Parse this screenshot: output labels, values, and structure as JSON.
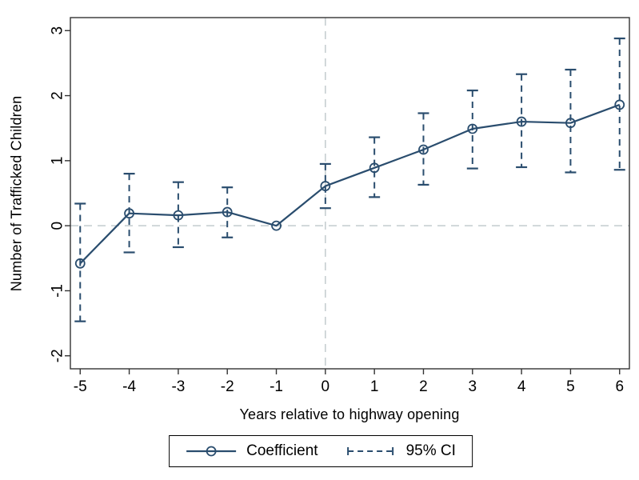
{
  "chart_data": {
    "type": "line",
    "title": "",
    "xlabel": "Years relative to highway opening",
    "ylabel": "Number of Trafficked Children",
    "x": [
      -5,
      -4,
      -3,
      -2,
      -1,
      0,
      1,
      2,
      3,
      4,
      5,
      6
    ],
    "series": [
      {
        "name": "Coefficient",
        "marker": "open-circle",
        "values": [
          -0.58,
          0.19,
          0.16,
          0.21,
          0.0,
          0.61,
          0.89,
          1.17,
          1.49,
          1.6,
          1.58,
          1.86
        ]
      }
    ],
    "ci": {
      "name": "95% CI",
      "style": "dashed-whisker-with-caps",
      "low": [
        -1.47,
        -0.41,
        -0.33,
        -0.18,
        null,
        0.27,
        0.44,
        0.63,
        0.88,
        0.9,
        0.82,
        0.86
      ],
      "high": [
        0.34,
        0.8,
        0.67,
        0.59,
        null,
        0.95,
        1.36,
        1.73,
        2.08,
        2.33,
        2.4,
        2.88
      ]
    },
    "xticks": [
      -5,
      -4,
      -3,
      -2,
      -1,
      0,
      1,
      2,
      3,
      4,
      5,
      6
    ],
    "yticks": [
      3,
      2,
      1,
      0,
      -1,
      -2
    ],
    "xlim": [
      -5.2,
      6.2
    ],
    "ylim": [
      -2.2,
      3.2
    ],
    "reference_lines": {
      "x": 0,
      "y": 0
    },
    "grid": "reference-lines-only",
    "legend_position": "bottom-boxed",
    "colors": {
      "series": "#2a4d6e",
      "grid": "#c3cbce",
      "axis": "#333333",
      "text": "#000000",
      "background": "#ffffff"
    }
  }
}
